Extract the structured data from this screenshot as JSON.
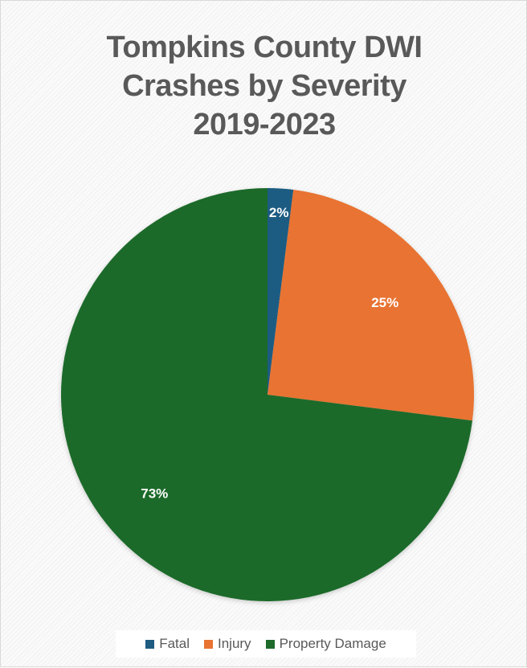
{
  "chart_data": {
    "type": "pie",
    "title_lines": [
      "Tompkins County DWI",
      "Crashes by Severity",
      "2019-2023"
    ],
    "slices": [
      {
        "name": "Fatal",
        "value": 2,
        "label": "2%",
        "color": "#1f5c82"
      },
      {
        "name": "Injury",
        "value": 25,
        "label": "25%",
        "color": "#e87332"
      },
      {
        "name": "Property Damage",
        "value": 73,
        "label": "73%",
        "color": "#1e6b2b"
      }
    ],
    "legend": {
      "position": "bottom",
      "entries": [
        "Fatal",
        "Injury",
        "Property Damage"
      ]
    },
    "start_angle": "12 o'clock",
    "direction": "clockwise"
  }
}
